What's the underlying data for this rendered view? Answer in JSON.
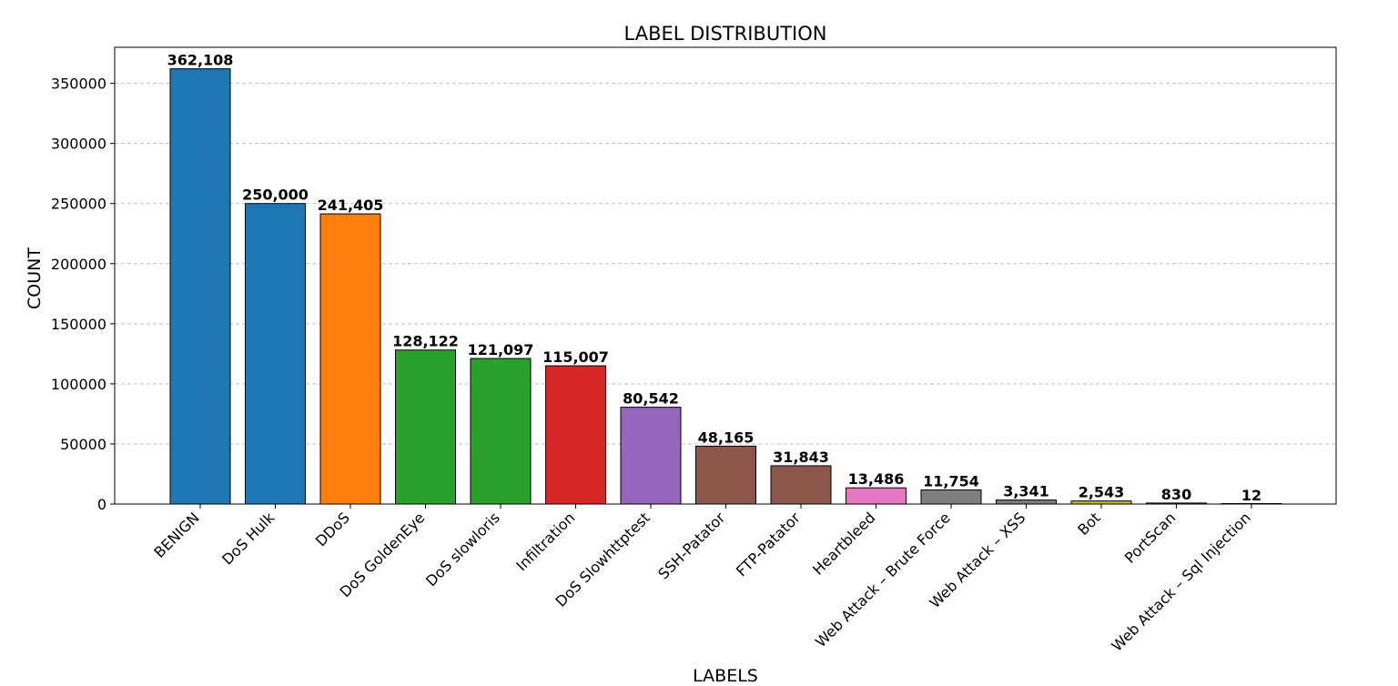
{
  "chart_data": {
    "type": "bar",
    "title": "LABEL DISTRIBUTION",
    "xlabel": "LABELS",
    "ylabel": "COUNT",
    "ylim": [
      0,
      380000
    ],
    "yticks": [
      0,
      50000,
      100000,
      150000,
      200000,
      250000,
      300000,
      350000
    ],
    "ytick_labels": [
      "0",
      "50000",
      "100000",
      "150000",
      "200000",
      "250000",
      "300000",
      "350000"
    ],
    "grid": "horizontal-dashed",
    "categories": [
      "BENIGN",
      "DoS Hulk",
      "DDoS",
      "DoS GoldenEye",
      "DoS slowloris",
      "Infiltration",
      "DoS Slowhttptest",
      "SSH-Patator",
      "FTP-Patator",
      "Heartbleed",
      "Web Attack – Brute Force",
      "Web Attack – XSS",
      "Bot",
      "PortScan",
      "Web Attack – Sql Injection"
    ],
    "values": [
      362108,
      250000,
      241405,
      128122,
      121097,
      115007,
      80542,
      48165,
      31843,
      13486,
      11754,
      3341,
      2543,
      830,
      12
    ],
    "value_labels": [
      "362,108",
      "250,000",
      "241,405",
      "128,122",
      "121,097",
      "115,007",
      "80,542",
      "48,165",
      "31,843",
      "13,486",
      "11,754",
      "3,341",
      "2,543",
      "830",
      "12"
    ],
    "colors": [
      "#1f77b4",
      "#1f77b4",
      "#ff7f0e",
      "#2ca02c",
      "#2ca02c",
      "#d62728",
      "#9467bd",
      "#8c564b",
      "#8c564b",
      "#e377c2",
      "#7f7f7f",
      "#7f7f7f",
      "#bcbd22",
      "#17becf",
      "#17becf"
    ]
  }
}
